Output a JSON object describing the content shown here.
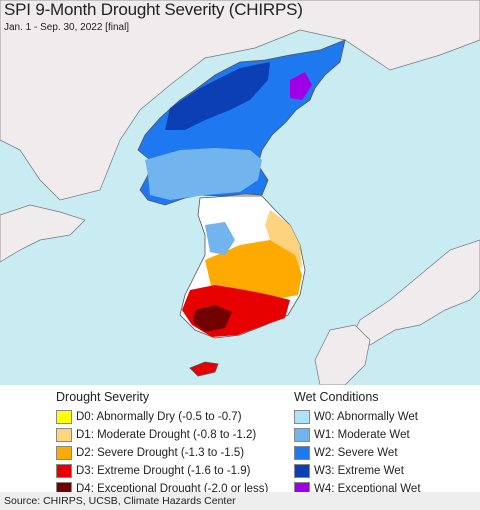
{
  "title": "SPI 9-Month Drought Severity (CHIRPS)",
  "subtitle": "Jan. 1 - Sep. 30, 2022 [final]",
  "legend": {
    "drought_heading": "Drought Severity",
    "wet_heading": "Wet Conditions",
    "drought_items": [
      {
        "label": "D0: Abnormally Dry (-0.5 to -0.7)",
        "color": "#ffff00"
      },
      {
        "label": "D1: Moderate Drought (-0.8 to -1.2)",
        "color": "#fcd37f"
      },
      {
        "label": "D2: Severe Drought (-1.3 to -1.5)",
        "color": "#ffaa00"
      },
      {
        "label": "D3: Extreme Drought (-1.6 to -1.9)",
        "color": "#e60000"
      },
      {
        "label": "D4: Exceptional Drought (-2.0 or less)",
        "color": "#730000"
      }
    ],
    "wet_items": [
      {
        "label": "W0: Abnormally Wet",
        "color": "#aee2f9"
      },
      {
        "label": "W1: Moderate Wet",
        "color": "#72b4ee"
      },
      {
        "label": "W2: Severe Wet",
        "color": "#1e78f0"
      },
      {
        "label": "W3: Extreme Wet",
        "color": "#0c3fb4"
      },
      {
        "label": "W4: Exceptional Wet",
        "color": "#a000e6"
      }
    ]
  },
  "source": "Source: CHIRPS, UCSB, Climate Hazards Center",
  "colors": {
    "ocean": "#c9ecf3",
    "land_outside": "#f0eced",
    "border": "#555555"
  }
}
